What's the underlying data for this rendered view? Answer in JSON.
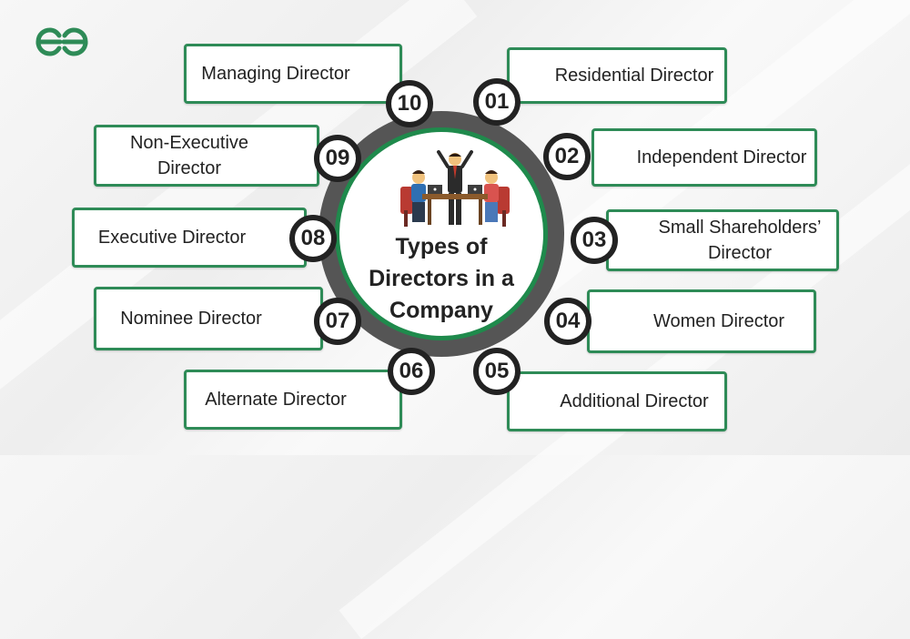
{
  "brand": {
    "logo_icon": "geeksforgeeks-logo-icon",
    "color": "#2e8b57"
  },
  "title": {
    "line1": "Types of",
    "line2": "Directors in a",
    "line3": "Company"
  },
  "colors": {
    "box_border": "#2e8b57",
    "ring_outer": "#555555",
    "ring_inner_border": "#1f8a4c",
    "badge_border": "#222222",
    "text": "#222222"
  },
  "types": [
    {
      "number": "01",
      "line1": "Residential Director",
      "line2": ""
    },
    {
      "number": "02",
      "line1": "Independent Director",
      "line2": ""
    },
    {
      "number": "03",
      "line1": "Small Shareholders’",
      "line2": "Director"
    },
    {
      "number": "04",
      "line1": "Women Director",
      "line2": ""
    },
    {
      "number": "05",
      "line1": "Additional Director",
      "line2": ""
    },
    {
      "number": "06",
      "line1": "Alternate Director",
      "line2": ""
    },
    {
      "number": "07",
      "line1": "Nominee Director",
      "line2": ""
    },
    {
      "number": "08",
      "line1": "Executive Director",
      "line2": ""
    },
    {
      "number": "09",
      "line1": "Non-Executive",
      "line2": "Director"
    },
    {
      "number": "10",
      "line1": "Managing Director",
      "line2": ""
    }
  ]
}
